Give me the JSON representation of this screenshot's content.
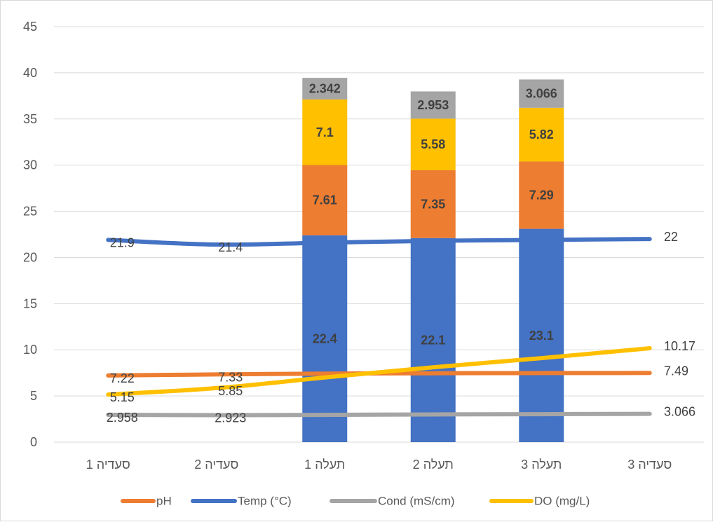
{
  "colors": {
    "pH": "#ED7D31",
    "Temp (°C)": "#4472C4",
    "Cond (mS/cm)": "#A5A5A5",
    "DO (mg/L)": "#FFC000",
    "grid": "#d9d9d9",
    "text": "#595959"
  },
  "chart_data": {
    "type": "bar",
    "subtype": "stacked bars with line overlay",
    "categories": [
      "סעדיה 1",
      "סעדיה 2",
      "תעלה 1",
      "תעלה 2",
      "תעלה 3",
      "סעדיה 3"
    ],
    "ylim": [
      0,
      45
    ],
    "yticks": [
      0,
      5,
      10,
      15,
      20,
      25,
      30,
      35,
      40,
      45
    ],
    "grid": true,
    "legend_position": "bottom",
    "legend": [
      "pH",
      "Temp (°C)",
      "Cond (mS/cm)",
      "DO (mg/L)"
    ],
    "bar_series": [
      {
        "name": "Temp (°C)",
        "values": [
          null,
          null,
          22.4,
          22.1,
          23.1,
          null
        ],
        "labels": [
          "",
          "",
          "22.4",
          "22.1",
          "23.1",
          ""
        ]
      },
      {
        "name": "pH",
        "values": [
          null,
          null,
          7.61,
          7.35,
          7.29,
          null
        ],
        "labels": [
          "",
          "",
          "7.61",
          "7.35",
          "7.29",
          ""
        ]
      },
      {
        "name": "DO (mg/L)",
        "values": [
          null,
          null,
          7.1,
          5.58,
          5.82,
          null
        ],
        "labels": [
          "",
          "",
          "7.1",
          "5.58",
          "5.82",
          ""
        ]
      },
      {
        "name": "Cond (mS/cm)",
        "values": [
          null,
          null,
          2.342,
          2.953,
          3.066,
          null
        ],
        "labels": [
          "",
          "",
          "2.342",
          "2.953",
          "3.066",
          ""
        ]
      }
    ],
    "line_series": [
      {
        "name": "Temp (°C)",
        "values": [
          21.9,
          21.4,
          21.6,
          21.8,
          21.9,
          22.0
        ],
        "labels": [
          "21.9",
          "21.4",
          "",
          "",
          "",
          "22"
        ]
      },
      {
        "name": "pH",
        "values": [
          7.22,
          7.33,
          7.42,
          7.46,
          7.48,
          7.49
        ],
        "labels": [
          "7.22",
          "7.33",
          "",
          "",
          "",
          "7.49"
        ]
      },
      {
        "name": "DO (mg/L)",
        "values": [
          5.15,
          5.85,
          7.0,
          8.1,
          9.1,
          10.17
        ],
        "labels": [
          "5.15",
          "5.85",
          "",
          "",
          "",
          "10.17"
        ]
      },
      {
        "name": "Cond (mS/cm)",
        "values": [
          2.958,
          2.923,
          2.95,
          3.0,
          3.03,
          3.066
        ],
        "labels": [
          "2.958",
          "2.923",
          "",
          "",
          "",
          "3.066"
        ]
      }
    ]
  }
}
